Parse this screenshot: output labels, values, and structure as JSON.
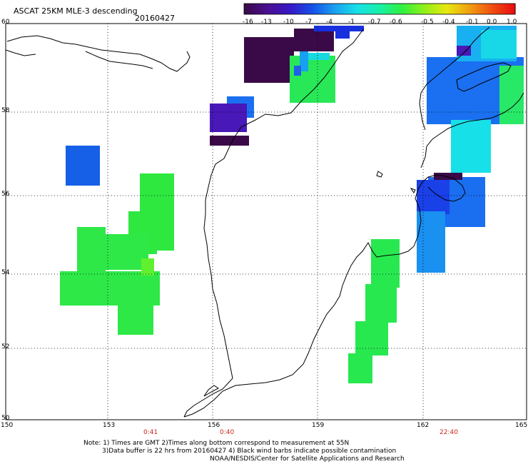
{
  "header": {
    "title": "ASCAT 25KM MLE-3 descending",
    "date": "20160427"
  },
  "colorbar": {
    "ticks": [
      "-16",
      "-13",
      "-10",
      "-7",
      "-4",
      "-1",
      "-0.7",
      "-0.6",
      "-0.5",
      "-0.4",
      "-0.1",
      "0.0",
      "1.0"
    ],
    "colors": [
      "#3a0a48",
      "#4a1090",
      "#3818c8",
      "#1450e8",
      "#1aa0f0",
      "#18e0e8",
      "#18f0a8",
      "#30f040",
      "#90f018",
      "#e8e810",
      "#f0a010",
      "#f05010",
      "#e81010"
    ]
  },
  "map": {
    "lat_labels": [
      "60",
      "58",
      "56",
      "54",
      "52",
      "50"
    ],
    "lon_labels": [
      "150",
      "153",
      "156",
      "159",
      "162",
      "165"
    ],
    "time_labels": [
      "0:41",
      "0:40",
      "22:40"
    ]
  },
  "footer": {
    "line1": "Note: 1) Times are GMT 2)Times along bottom correspond to measurement at 55N",
    "line2": "3)Data buffer is 22 hrs from 20160427 4) Black wind barbs indicate possible contamination",
    "line3": "NOAA/NESDIS/Center for Satellite Applications and Research"
  }
}
